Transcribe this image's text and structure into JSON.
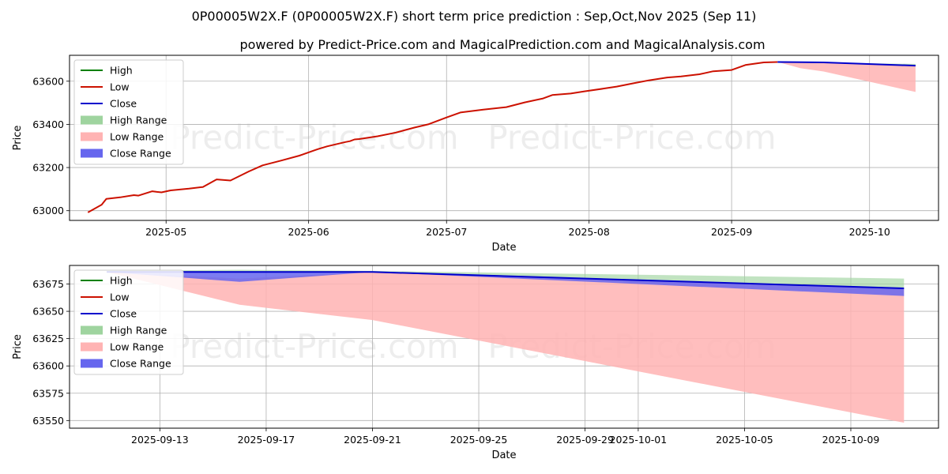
{
  "title": "0P00005W2X.F (0P00005W2X.F) short term price prediction : Sep,Oct,Nov 2025 (Sep 11)",
  "subtitle": "powered by Predict-Price.com and MagicalPrediction.com and MagicalAnalysis.com",
  "watermark": "Predict-Price.com",
  "colors": {
    "high": "#008000",
    "low": "#cc1100",
    "close": "#0000cc",
    "high_range": "#9fd49f",
    "low_range": "#ffb3b3",
    "close_range": "#6666ee",
    "grid": "#b0b0b0"
  },
  "chart_data": [
    {
      "type": "line",
      "xlabel": "Date",
      "ylabel": "Price",
      "xlim": [
        "2025-04-10",
        "2025-10-16"
      ],
      "ylim": [
        62955,
        63720
      ],
      "x_ticks": [
        {
          "date": "2025-05-01",
          "label": "2025-05"
        },
        {
          "date": "2025-06-01",
          "label": "2025-06"
        },
        {
          "date": "2025-07-01",
          "label": "2025-07"
        },
        {
          "date": "2025-08-01",
          "label": "2025-08"
        },
        {
          "date": "2025-09-01",
          "label": "2025-09"
        },
        {
          "date": "2025-10-01",
          "label": "2025-10"
        }
      ],
      "y_ticks": [
        63000,
        63200,
        63400,
        63600
      ],
      "grid": true,
      "legend": {
        "position": "top-left",
        "entries": [
          "High",
          "Low",
          "Close",
          "High Range",
          "Low Range",
          "Close Range"
        ]
      },
      "series": [
        {
          "name": "Low",
          "x": [
            "2025-04-14",
            "2025-04-17",
            "2025-04-18",
            "2025-04-21",
            "2025-04-24",
            "2025-04-25",
            "2025-04-28",
            "2025-04-29",
            "2025-04-30",
            "2025-05-02",
            "2025-05-06",
            "2025-05-09",
            "2025-05-12",
            "2025-05-15",
            "2025-05-19",
            "2025-05-22",
            "2025-05-26",
            "2025-05-30",
            "2025-06-02",
            "2025-06-03",
            "2025-06-05",
            "2025-06-09",
            "2025-06-10",
            "2025-06-11",
            "2025-06-12",
            "2025-06-16",
            "2025-06-20",
            "2025-06-24",
            "2025-06-27",
            "2025-07-01",
            "2025-07-04",
            "2025-07-09",
            "2025-07-14",
            "2025-07-18",
            "2025-07-22",
            "2025-07-24",
            "2025-07-28",
            "2025-07-31",
            "2025-08-04",
            "2025-08-07",
            "2025-08-11",
            "2025-08-14",
            "2025-08-18",
            "2025-08-21",
            "2025-08-25",
            "2025-08-28",
            "2025-09-01",
            "2025-09-04",
            "2025-09-08",
            "2025-09-11"
          ],
          "values": [
            62992,
            63028,
            63055,
            63062,
            63072,
            63070,
            63090,
            63087,
            63085,
            63094,
            63102,
            63110,
            63145,
            63140,
            63182,
            63210,
            63232,
            63255,
            63278,
            63285,
            63298,
            63318,
            63322,
            63330,
            63332,
            63345,
            63362,
            63385,
            63400,
            63432,
            63455,
            63468,
            63480,
            63502,
            63520,
            63536,
            63543,
            63553,
            63565,
            63575,
            63592,
            63604,
            63617,
            63622,
            63632,
            63646,
            63652,
            63675,
            63687,
            63689
          ]
        },
        {
          "name": "Close",
          "x": [
            "2025-09-11",
            "2025-09-21",
            "2025-10-11"
          ],
          "values": [
            63689,
            63687,
            63672
          ]
        }
      ],
      "ranges": [
        {
          "name": "Low Range",
          "x": [
            "2025-09-11",
            "2025-09-16",
            "2025-09-21",
            "2025-10-11"
          ],
          "upper": [
            63689,
            63688,
            63686,
            63673
          ],
          "lower": [
            63689,
            63660,
            63645,
            63550
          ]
        },
        {
          "name": "High Range",
          "x": [
            "2025-09-11",
            "2025-10-11"
          ],
          "upper": [
            63689,
            63680
          ],
          "lower": [
            63689,
            63673
          ]
        }
      ]
    },
    {
      "type": "line",
      "xlabel": "Date",
      "ylabel": "Price",
      "xlim": [
        "2025-09-09.6",
        "2025-10-12.3"
      ],
      "ylim": [
        63543,
        63692
      ],
      "x_ticks": [
        {
          "date": "2025-09-13",
          "label": "2025-09-13"
        },
        {
          "date": "2025-09-17",
          "label": "2025-09-17"
        },
        {
          "date": "2025-09-21",
          "label": "2025-09-21"
        },
        {
          "date": "2025-09-25",
          "label": "2025-09-25"
        },
        {
          "date": "2025-09-29",
          "label": "2025-09-29"
        },
        {
          "date": "2025-10-01",
          "label": "2025-10-01"
        },
        {
          "date": "2025-10-05",
          "label": "2025-10-05"
        },
        {
          "date": "2025-10-09",
          "label": "2025-10-09"
        }
      ],
      "y_ticks": [
        63550,
        63575,
        63600,
        63625,
        63650,
        63675
      ],
      "grid": true,
      "legend": {
        "position": "top-left",
        "entries": [
          "High",
          "Low",
          "Close",
          "High Range",
          "Low Range",
          "Close Range"
        ]
      },
      "series": [
        {
          "name": "Close",
          "x": [
            "2025-09-11",
            "2025-09-21",
            "2025-10-11"
          ],
          "values": [
            63686,
            63686,
            63671
          ]
        }
      ],
      "ranges": [
        {
          "name": "High Range",
          "x": [
            "2025-09-11",
            "2025-09-16",
            "2025-09-21",
            "2025-10-11"
          ],
          "upper": [
            63687,
            63688,
            63687,
            63680
          ],
          "lower": [
            63686,
            63686,
            63686,
            63671
          ]
        },
        {
          "name": "Low Range",
          "x": [
            "2025-09-11",
            "2025-09-16",
            "2025-09-21",
            "2025-10-11"
          ],
          "upper": [
            63686,
            63680,
            63686,
            63671
          ],
          "lower": [
            63686,
            63656,
            63642,
            63548
          ]
        },
        {
          "name": "Close Range",
          "x": [
            "2025-09-11",
            "2025-09-16",
            "2025-09-21",
            "2025-10-11"
          ],
          "upper": [
            63686,
            63686,
            63686,
            63671
          ],
          "lower": [
            63686,
            63677,
            63686,
            63664
          ]
        }
      ]
    }
  ]
}
